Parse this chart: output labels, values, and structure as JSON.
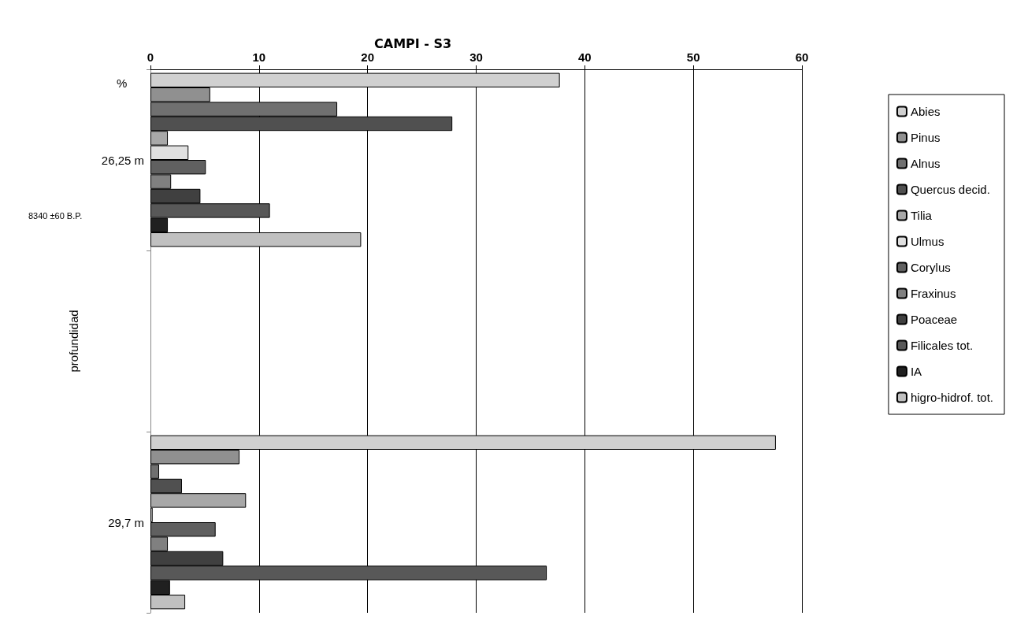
{
  "chart_data": {
    "type": "bar",
    "orientation": "horizontal",
    "title": "CAMPI - S3",
    "xlabel": "%",
    "ylabel": "profundidad",
    "categories": [
      "26,25 m",
      null,
      "29,7 m"
    ],
    "annotations": [
      "8340 ±60 B.P."
    ],
    "xlim": [
      0,
      60
    ],
    "xticks": [
      0,
      10,
      20,
      30,
      40,
      50,
      60
    ],
    "grid": "x",
    "legend": "right",
    "series": [
      {
        "name": "Abies",
        "color": "#d0d0d0",
        "values": [
          37.7,
          null,
          57.6
        ]
      },
      {
        "name": "Pinus",
        "color": "#909090",
        "values": [
          5.5,
          null,
          8.2
        ]
      },
      {
        "name": "Alnus",
        "color": "#707070",
        "values": [
          17.2,
          null,
          0.8
        ]
      },
      {
        "name": "Quercus decid.",
        "color": "#505050",
        "values": [
          27.8,
          null,
          2.9
        ]
      },
      {
        "name": "Tilia",
        "color": "#a8a8a8",
        "values": [
          1.6,
          null,
          8.8
        ]
      },
      {
        "name": "Ulmus",
        "color": "#e0e0e0",
        "values": [
          3.5,
          null,
          0.2
        ]
      },
      {
        "name": "Corylus",
        "color": "#606060",
        "values": [
          5.1,
          null,
          6.0
        ]
      },
      {
        "name": "Fraxinus",
        "color": "#808080",
        "values": [
          1.9,
          null,
          1.6
        ]
      },
      {
        "name": "Poaceae",
        "color": "#404040",
        "values": [
          4.6,
          null,
          6.7
        ]
      },
      {
        "name": "Filicales tot.",
        "color": "#585858",
        "values": [
          11.0,
          null,
          36.5
        ]
      },
      {
        "name": "IA",
        "color": "#202020",
        "values": [
          1.6,
          null,
          1.8
        ]
      },
      {
        "name": "higro-hidrof. tot.",
        "color": "#c0c0c0",
        "values": [
          19.4,
          null,
          3.2
        ]
      }
    ]
  }
}
